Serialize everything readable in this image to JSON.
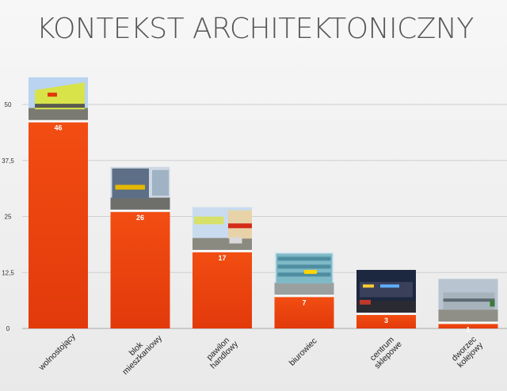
{
  "slide": {
    "title": "KONTEKST ARCHITEKTONICZNY"
  },
  "chart_data": {
    "type": "bar",
    "title": "",
    "xlabel": "",
    "ylabel": "",
    "categories": [
      [
        "wolnostojący"
      ],
      [
        "blok",
        "mieszkaniowy"
      ],
      [
        "pawilon",
        "handlowy"
      ],
      [
        "biurowiec"
      ],
      [
        "centrum",
        "sklepowe"
      ],
      [
        "dworzec",
        "kolejowy"
      ]
    ],
    "values": [
      46,
      26,
      17,
      7,
      3,
      1
    ],
    "ylim": [
      0,
      50
    ],
    "yticks": [
      0,
      12.5,
      25,
      37.5,
      50
    ],
    "ytick_labels": [
      "0",
      "12,5",
      "25",
      "37,5",
      "50"
    ],
    "grid": true,
    "legend": "none",
    "bar_color_top": "#f24d12",
    "bar_color_bottom": "#e23a0b",
    "images": [
      "building photo: detached store",
      "building photo: store in apartment block",
      "building photo: retail pavilion",
      "building photo: office building",
      "building photo: shopping centre",
      "building photo: railway station"
    ]
  }
}
